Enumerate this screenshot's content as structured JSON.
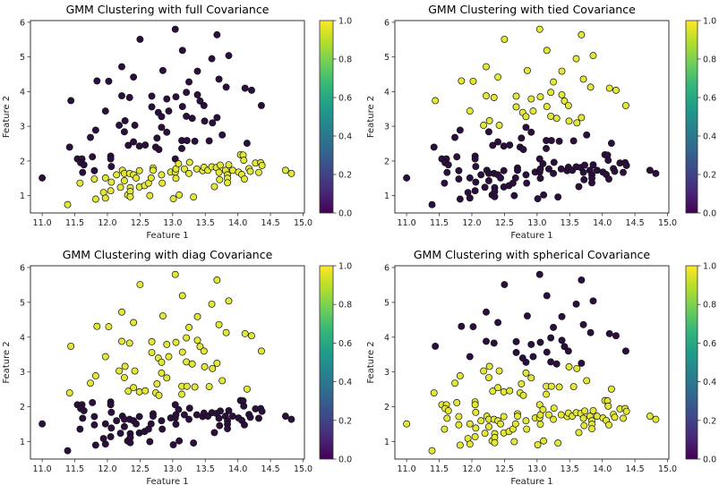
{
  "chart_data": [
    {
      "type": "scatter",
      "title": "GMM Clustering with full Covariance",
      "xlabel": "Feature 1",
      "ylabel": "Feature 2",
      "xlim": [
        10.82,
        15.02
      ],
      "ylim": [
        0.5,
        6.05
      ],
      "xticks": [
        "11.0",
        "11.5",
        "12.0",
        "12.5",
        "13.0",
        "13.5",
        "14.0",
        "14.5",
        "15.0"
      ],
      "yticks": [
        "1",
        "2",
        "3",
        "4",
        "5",
        "6"
      ],
      "colorbar": {
        "ticks": [
          "0.0",
          "0.2",
          "0.4",
          "0.6",
          "0.8",
          "1.0"
        ],
        "range": [
          0,
          1
        ],
        "colormap": "viridis"
      },
      "covariance": "full"
    },
    {
      "type": "scatter",
      "title": "GMM Clustering with tied Covariance",
      "xlabel": "Feature 1",
      "ylabel": "Feature 2",
      "xlim": [
        10.82,
        15.02
      ],
      "ylim": [
        0.5,
        6.05
      ],
      "xticks": [
        "11.0",
        "11.5",
        "12.0",
        "12.5",
        "13.0",
        "13.5",
        "14.0",
        "14.5",
        "15.0"
      ],
      "yticks": [
        "1",
        "2",
        "3",
        "4",
        "5",
        "6"
      ],
      "colorbar": {
        "ticks": [
          "0.0",
          "0.2",
          "0.4",
          "0.6",
          "0.8",
          "1.0"
        ],
        "range": [
          0,
          1
        ],
        "colormap": "viridis"
      },
      "covariance": "tied"
    },
    {
      "type": "scatter",
      "title": "GMM Clustering with diag Covariance",
      "xlabel": "Feature 1",
      "ylabel": "Feature 2",
      "xlim": [
        10.82,
        15.02
      ],
      "ylim": [
        0.5,
        6.05
      ],
      "xticks": [
        "11.0",
        "11.5",
        "12.0",
        "12.5",
        "13.0",
        "13.5",
        "14.0",
        "14.5",
        "15.0"
      ],
      "yticks": [
        "1",
        "2",
        "3",
        "4",
        "5",
        "6"
      ],
      "colorbar": {
        "ticks": [
          "0.0",
          "0.2",
          "0.4",
          "0.6",
          "0.8",
          "1.0"
        ],
        "range": [
          0,
          1
        ],
        "colormap": "viridis"
      },
      "covariance": "diag"
    },
    {
      "type": "scatter",
      "title": "GMM Clustering with spherical Covariance",
      "xlabel": "Feature 1",
      "ylabel": "Feature 2",
      "xlim": [
        10.82,
        15.02
      ],
      "ylim": [
        0.5,
        6.05
      ],
      "xticks": [
        "11.0",
        "11.5",
        "12.0",
        "12.5",
        "13.0",
        "13.5",
        "14.0",
        "14.5",
        "15.0"
      ],
      "yticks": [
        "1",
        "2",
        "3",
        "4",
        "5",
        "6"
      ],
      "colorbar": {
        "ticks": [
          "0.0",
          "0.2",
          "0.4",
          "0.6",
          "0.8",
          "1.0"
        ],
        "range": [
          0,
          1
        ],
        "colormap": "viridis"
      },
      "covariance": "spherical"
    }
  ],
  "points": [
    [
      13.04,
      5.8
    ],
    [
      13.68,
      5.64
    ],
    [
      12.5,
      5.51
    ],
    [
      13.15,
      5.19
    ],
    [
      13.86,
      5.04
    ],
    [
      13.6,
      4.95
    ],
    [
      12.22,
      4.72
    ],
    [
      12.85,
      4.61
    ],
    [
      13.38,
      4.59
    ],
    [
      12.4,
      4.42
    ],
    [
      11.84,
      4.31
    ],
    [
      12.02,
      4.3
    ],
    [
      13.25,
      4.28
    ],
    [
      13.71,
      4.36
    ],
    [
      13.82,
      4.13
    ],
    [
      14.11,
      4.1
    ],
    [
      14.21,
      4.04
    ],
    [
      11.44,
      3.74
    ],
    [
      12.22,
      3.88
    ],
    [
      12.34,
      3.83
    ],
    [
      12.68,
      3.87
    ],
    [
      12.91,
      3.79
    ],
    [
      13.05,
      3.85
    ],
    [
      13.21,
      3.98
    ],
    [
      13.38,
      3.91
    ],
    [
      13.15,
      3.57
    ],
    [
      13.42,
      3.73
    ],
    [
      13.48,
      3.6
    ],
    [
      14.36,
      3.6
    ],
    [
      12.68,
      3.56
    ],
    [
      12.78,
      3.4
    ],
    [
      12.83,
      3.28
    ],
    [
      12.94,
      3.44
    ],
    [
      11.97,
      3.44
    ],
    [
      13.21,
      3.29
    ],
    [
      13.3,
      3.23
    ],
    [
      13.68,
      3.25
    ],
    [
      13.49,
      3.15
    ],
    [
      13.61,
      3.1
    ],
    [
      12.27,
      3.16
    ],
    [
      12.18,
      3.03
    ],
    [
      12.42,
      3.03
    ],
    [
      11.82,
      2.89
    ],
    [
      11.74,
      2.68
    ],
    [
      12.26,
      2.84
    ],
    [
      12.83,
      2.97
    ],
    [
      12.91,
      2.83
    ],
    [
      12.76,
      2.66
    ],
    [
      13.76,
      2.75
    ],
    [
      11.42,
      2.4
    ],
    [
      12.32,
      2.45
    ],
    [
      12.4,
      2.55
    ],
    [
      12.49,
      2.43
    ],
    [
      12.58,
      2.46
    ],
    [
      12.74,
      2.4
    ],
    [
      12.79,
      2.33
    ],
    [
      13.14,
      2.59
    ],
    [
      13.22,
      2.59
    ],
    [
      13.34,
      2.57
    ],
    [
      13.14,
      2.36
    ],
    [
      13.56,
      2.58
    ],
    [
      14.14,
      2.51
    ],
    [
      11.0,
      1.51
    ],
    [
      11.54,
      2.06
    ],
    [
      11.61,
      2.06
    ],
    [
      11.59,
      1.95
    ],
    [
      11.64,
      1.89
    ],
    [
      11.62,
      1.67
    ],
    [
      11.77,
      2.12
    ],
    [
      11.8,
      1.72
    ],
    [
      12.05,
      2.14
    ],
    [
      12.05,
      2.06
    ],
    [
      12.06,
      1.84
    ],
    [
      13.04,
      2.06
    ],
    [
      11.39,
      0.74
    ],
    [
      11.58,
      1.36
    ],
    [
      11.8,
      1.48
    ],
    [
      11.82,
      0.9
    ],
    [
      11.94,
      1.09
    ],
    [
      11.97,
      0.93
    ],
    [
      11.97,
      1.51
    ],
    [
      12.05,
      1.14
    ],
    [
      12.06,
      1.39
    ],
    [
      12.14,
      1.6
    ],
    [
      12.2,
      1.24
    ],
    [
      12.23,
      1.73
    ],
    [
      12.26,
      1.64
    ],
    [
      12.26,
      1.43
    ],
    [
      12.34,
      1.64
    ],
    [
      12.31,
      1.02
    ],
    [
      12.35,
      1.23
    ],
    [
      12.35,
      1.12
    ],
    [
      12.35,
      0.97
    ],
    [
      12.4,
      1.6
    ],
    [
      12.44,
      1.51
    ],
    [
      12.49,
      1.72
    ],
    [
      12.49,
      1.25
    ],
    [
      12.57,
      1.29
    ],
    [
      12.63,
      1.36
    ],
    [
      12.67,
      1.51
    ],
    [
      12.65,
      1.0
    ],
    [
      12.7,
      1.8
    ],
    [
      12.7,
      1.73
    ],
    [
      12.83,
      1.6
    ],
    [
      12.84,
      1.36
    ],
    [
      12.97,
      1.68
    ],
    [
      13.01,
      0.91
    ],
    [
      13.04,
      1.68
    ],
    [
      13.05,
      1.5
    ],
    [
      13.05,
      1.77
    ],
    [
      13.09,
      1.92
    ],
    [
      13.1,
      1.02
    ],
    [
      13.18,
      1.77
    ],
    [
      13.25,
      1.64
    ],
    [
      13.26,
      1.96
    ],
    [
      13.32,
      0.96
    ],
    [
      13.37,
      1.77
    ],
    [
      13.46,
      1.72
    ],
    [
      13.48,
      1.82
    ],
    [
      13.54,
      1.73
    ],
    [
      13.6,
      1.83
    ],
    [
      13.64,
      1.26
    ],
    [
      13.67,
      1.81
    ],
    [
      13.71,
      1.67
    ],
    [
      13.73,
      1.88
    ],
    [
      13.72,
      1.46
    ],
    [
      13.81,
      1.73
    ],
    [
      13.84,
      1.6
    ],
    [
      13.86,
      1.89
    ],
    [
      13.84,
      1.5
    ],
    [
      13.84,
      1.37
    ],
    [
      13.92,
      1.73
    ],
    [
      14.01,
      1.68
    ],
    [
      14.04,
      2.18
    ],
    [
      14.08,
      2.17
    ],
    [
      14.09,
      2.02
    ],
    [
      14.06,
      1.61
    ],
    [
      14.1,
      1.48
    ],
    [
      14.17,
      1.78
    ],
    [
      14.19,
      1.7
    ],
    [
      14.27,
      1.94
    ],
    [
      14.32,
      1.67
    ],
    [
      14.35,
      1.95
    ],
    [
      14.37,
      1.87
    ],
    [
      14.73,
      1.73
    ],
    [
      14.82,
      1.64
    ]
  ],
  "labels": {
    "full": "dark_first74_yellow_rest",
    "tied": "yellow_if_y_gt_3.0",
    "diag": "yellow_if_y_gt_2.3",
    "spherical": "dark_if_y_gt_3.2"
  },
  "colors": {
    "cluster0": "#2c0f3f",
    "cluster1": "#e3e838",
    "edge": "#111111",
    "axis": "#333333"
  }
}
